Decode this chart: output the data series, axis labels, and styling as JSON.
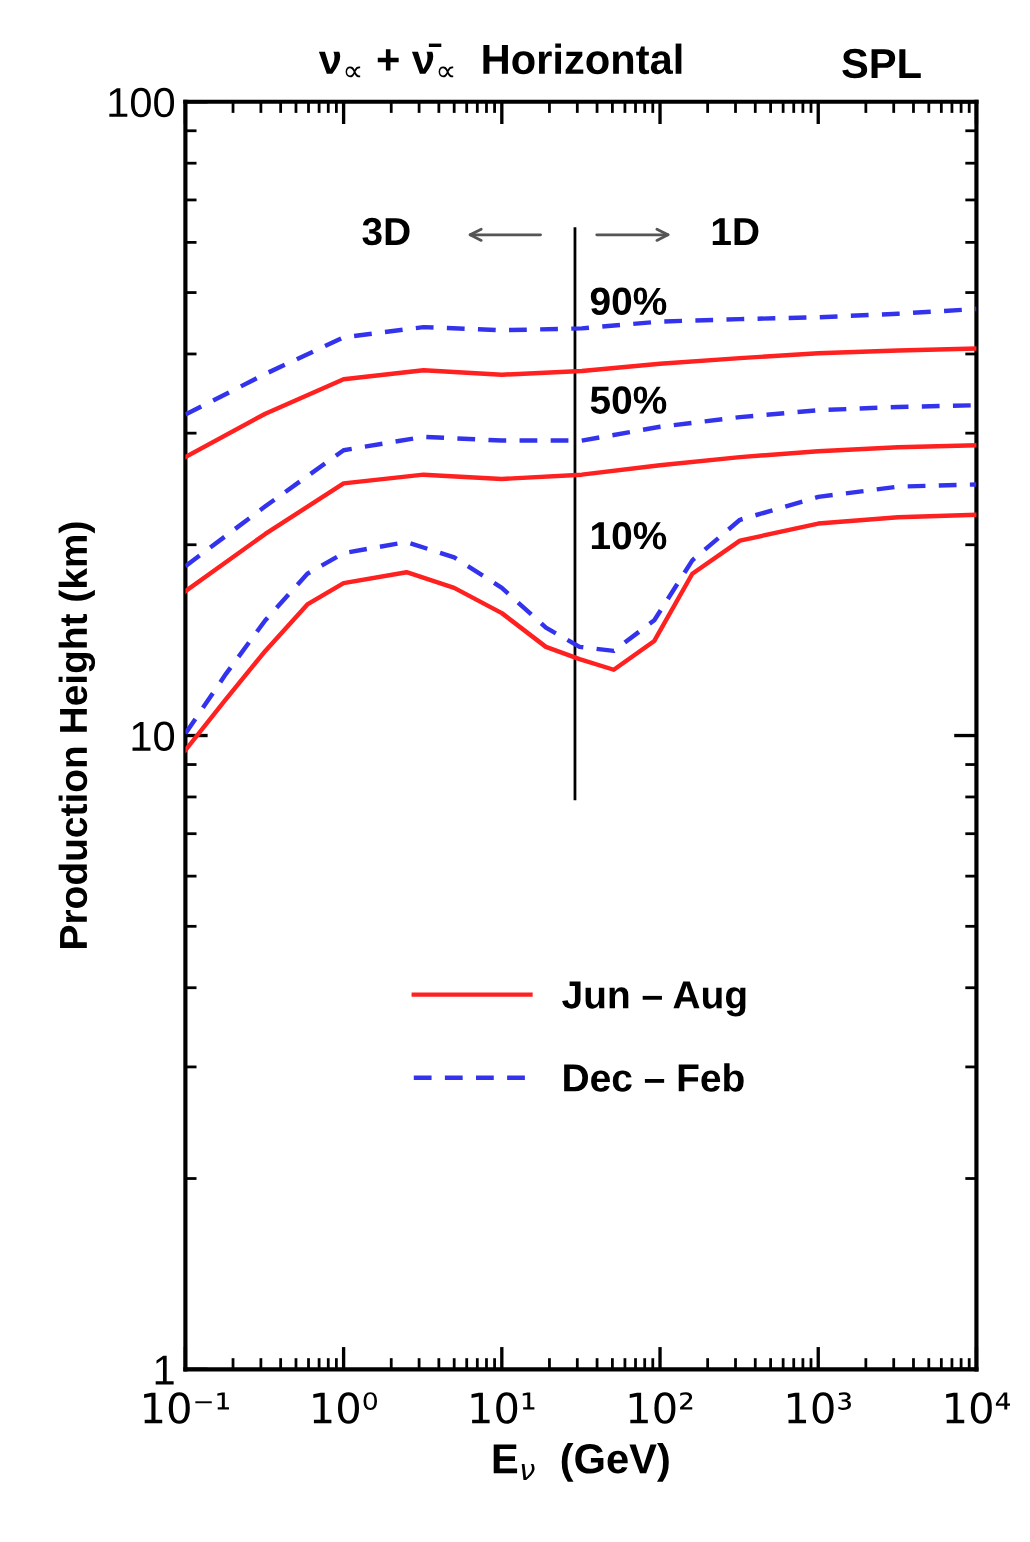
{
  "chart_data": {
    "type": "line",
    "title": "ν$_{∝}$ + ν̄$_{∝}$  Horizontal",
    "subtitle": "SPL",
    "xlabel": "E$_{ν}$  (GeV)",
    "ylabel": "Production Height (km)",
    "log": "xy",
    "xlim": [
      0.1,
      10000
    ],
    "xticks": [
      {
        "value": 0.1,
        "label": "10⁻¹"
      },
      {
        "value": 1,
        "label": "10⁰"
      },
      {
        "value": 10,
        "label": "10¹"
      },
      {
        "value": 100,
        "label": "10²"
      },
      {
        "value": 1000,
        "label": "10³"
      },
      {
        "value": 10000,
        "label": "10⁴"
      }
    ],
    "ylim": [
      1,
      100
    ],
    "yticks": [
      1,
      10,
      100
    ],
    "grid": false,
    "legend": "center",
    "marker": "none",
    "x": [
      0.1,
      0.32,
      1,
      3.2,
      10,
      32,
      100,
      320,
      1000,
      3200,
      10000
    ],
    "series": [
      {
        "name": "Jun – Aug",
        "color": "#ff2020",
        "line_style": "solid",
        "values": [
          27.5,
          32.2,
          36.5,
          37.7,
          37.1,
          37.6,
          38.6,
          39.4,
          40.1,
          40.5,
          40.8
        ]
      },
      {
        "name": "Dec – Feb",
        "color": "#3333ee",
        "line_style": "dashed",
        "values": [
          32.1,
          37.2,
          42.5,
          44.1,
          43.6,
          43.9,
          45.0,
          45.4,
          45.7,
          46.3,
          47.1
        ]
      },
      {
        "color": "#ff2020",
        "line_style": "solid",
        "values": [
          16.9,
          20.8,
          25.0,
          25.8,
          25.4,
          25.8,
          26.7,
          27.5,
          28.1,
          28.5,
          28.7
        ]
      },
      {
        "color": "#3333ee",
        "line_style": "dashed",
        "values": [
          18.5,
          23.0,
          28.2,
          29.6,
          29.2,
          29.2,
          30.7,
          31.8,
          32.6,
          33.0,
          33.2
        ]
      },
      {
        "color": "#ff2020",
        "line_style": "solid",
        "x": [
          0.1,
          0.18,
          0.32,
          0.59,
          1,
          2.5,
          5,
          10,
          19,
          31,
          51,
          92,
          160,
          320,
          1000,
          3200,
          10000
        ],
        "values": [
          9.48,
          11.4,
          13.6,
          16.1,
          17.4,
          18.1,
          17.1,
          15.6,
          13.8,
          13.2,
          12.7,
          14.1,
          18.0,
          20.3,
          21.6,
          22.1,
          22.3
        ]
      },
      {
        "color": "#3333ee",
        "line_style": "dashed",
        "x": [
          0.1,
          0.18,
          0.32,
          0.59,
          1,
          2.5,
          5,
          10,
          19,
          31,
          51,
          92,
          160,
          320,
          1000,
          3200,
          10000
        ],
        "values": [
          10.07,
          12.5,
          15.2,
          18.0,
          19.4,
          20.2,
          19.1,
          17.1,
          14.8,
          13.8,
          13.6,
          15.2,
          18.9,
          21.9,
          23.8,
          24.7,
          24.9
        ]
      }
    ],
    "ref_lines": [
      {
        "axis": "x",
        "value": 29,
        "color": "#000000",
        "line_style": "solid"
      }
    ],
    "annotations": [
      "3D",
      "1D",
      "90%",
      "50%",
      "10%"
    ]
  }
}
